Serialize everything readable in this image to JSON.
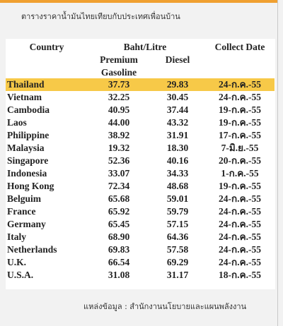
{
  "subtitle": "ตารางราคาน้ำมันไทยเทียบกับประเทศเพื่อนบ้าน",
  "table": {
    "header": {
      "country": "Country",
      "price_group": "Baht/Litre",
      "premium": "Premium Gasoline",
      "diesel": "Diesel",
      "date": "Collect Date"
    },
    "rows": [
      [
        "Thailand",
        "37.73",
        "29.83",
        "24-ก.ค.-55"
      ],
      [
        "Vietnam",
        "32.25",
        "30.45",
        "24-ก.ค.-55"
      ],
      [
        "Cambodia",
        "40.95",
        "37.44",
        "19-ก.ค.-55"
      ],
      [
        "Laos",
        "44.00",
        "43.32",
        "19-ก.ค.-55"
      ],
      [
        "Philippine",
        "38.92",
        "31.91",
        "17-ก.ค.-55"
      ],
      [
        "Malaysia",
        "19.32",
        "18.30",
        "7-มิ.ย.-55"
      ],
      [
        "Singapore",
        "52.36",
        "40.16",
        "20-ก.ค.-55"
      ],
      [
        "Indonesia",
        "33.07",
        "34.33",
        "1-ก.ค.-55"
      ],
      [
        "Hong Kong",
        "72.34",
        "48.68",
        "19-ก.ค.-55"
      ],
      [
        "Belguim",
        "65.68",
        "59.01",
        "24-ก.ค.-55"
      ],
      [
        "France",
        "65.92",
        "59.79",
        "24-ก.ค.-55"
      ],
      [
        "Germany",
        "65.45",
        "57.15",
        "24-ก.ค.-55"
      ],
      [
        "Italy",
        "68.90",
        "64.36",
        "24-ก.ค.-55"
      ],
      [
        "Netherlands",
        "69.83",
        "57.58",
        "24-ก.ค.-55"
      ],
      [
        "U.K.",
        "66.54",
        "69.29",
        "24-ก.ค.-55"
      ],
      [
        "U.S.A.",
        "31.08",
        "31.17",
        "18-ก.ค.-55"
      ]
    ]
  },
  "source": "แหล่งข้อมูล : สำนักงานนโยบายและแผนพลังงาน"
}
